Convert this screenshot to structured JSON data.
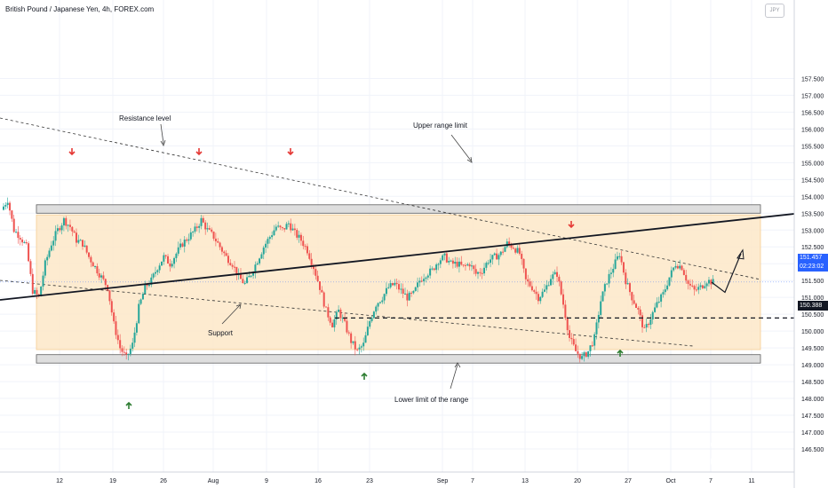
{
  "header": {
    "title": "British Pound / Japanese Yen, 4h, FOREX.com",
    "currency_badge": "JPY"
  },
  "price_tag": {
    "price": "151.457",
    "countdown": "02:23:02"
  },
  "level_tag": {
    "price": "150.388"
  },
  "annotations": {
    "resistance_level": "Resistance level",
    "upper_range_limit": "Upper range limit",
    "support": "Support",
    "lower_limit": "Lower limit of the range"
  },
  "colors": {
    "up_candle": "#26a69a",
    "down_candle": "#ef5350",
    "range_fill": "#fde9cc",
    "zone_fill": "#d9d9d9",
    "price_tag": "#2962ff",
    "down_arrow": "#e53935",
    "up_arrow": "#2e7d32"
  },
  "chart_data": {
    "type": "candlestick",
    "title": "British Pound / Japanese Yen, 4h, FOREX.com",
    "y_axis": {
      "ticks": [
        "146.500",
        "147.000",
        "147.500",
        "148.000",
        "148.500",
        "149.000",
        "149.500",
        "150.000",
        "150.500",
        "151.000",
        "151.500",
        "152.000",
        "152.500",
        "153.000",
        "153.500",
        "154.000",
        "154.500",
        "155.000",
        "155.500",
        "156.000",
        "156.500",
        "157.000",
        "157.500"
      ],
      "range": [
        146.5,
        157.5
      ]
    },
    "x_axis": {
      "ticks": [
        "12",
        "19",
        "26",
        "Aug",
        "9",
        "16",
        "23",
        "Sep",
        "7",
        "13",
        "20",
        "27",
        "Oct",
        "7",
        "11"
      ]
    },
    "last_price": 151.457,
    "horizontal_level": 150.388,
    "range_zone": [
      149.45,
      153.45
    ],
    "resistance_zone": [
      153.5,
      153.75
    ],
    "support_zone": [
      149.05,
      149.3
    ],
    "close_path": [
      153.6,
      153.9,
      153.0,
      152.8,
      152.5,
      151.2,
      151.0,
      152.0,
      152.6,
      153.0,
      153.3,
      153.1,
      152.7,
      152.6,
      152.2,
      151.9,
      151.6,
      151.3,
      150.2,
      149.5,
      149.2,
      149.6,
      150.7,
      151.3,
      151.5,
      151.9,
      152.2,
      152.0,
      152.3,
      152.6,
      152.8,
      153.0,
      153.3,
      153.0,
      152.8,
      152.5,
      152.2,
      152.0,
      151.6,
      151.4,
      151.7,
      152.1,
      152.5,
      152.8,
      153.1,
      153.0,
      153.2,
      152.9,
      152.7,
      152.4,
      151.9,
      151.3,
      150.6,
      150.2,
      150.6,
      150.2,
      149.7,
      149.4,
      149.6,
      150.3,
      150.8,
      151.0,
      151.3,
      151.4,
      151.2,
      151.0,
      151.1,
      151.5,
      151.7,
      151.8,
      152.1,
      152.2,
      152.0,
      152.0,
      151.9,
      152.0,
      151.7,
      151.8,
      152.1,
      152.2,
      152.3,
      152.6,
      152.5,
      152.3,
      151.5,
      151.3,
      151.0,
      151.2,
      151.6,
      151.7,
      150.8,
      149.8,
      149.4,
      149.2,
      149.4,
      149.8,
      150.9,
      151.5,
      151.9,
      152.3,
      151.5,
      151.0,
      150.6,
      150.0,
      150.4,
      150.8,
      151.1,
      151.6,
      152.0,
      151.9,
      151.4,
      151.2,
      151.3,
      151.5,
      151.45
    ],
    "forecast_path": [
      151.45,
      151.15,
      152.3
    ]
  }
}
